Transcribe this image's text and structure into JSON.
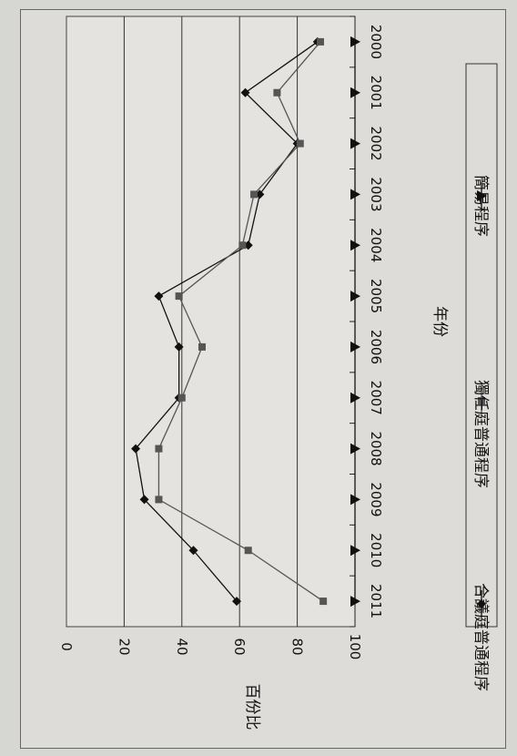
{
  "chart_data": {
    "type": "line",
    "xlabel": "年份",
    "ylabel": "百份比",
    "x": [
      "2011",
      "2010",
      "2009",
      "2008",
      "2007",
      "2006",
      "2005",
      "2004",
      "2003",
      "2002",
      "2001",
      "2000"
    ],
    "ylim": [
      0,
      100
    ],
    "yticks": [
      0,
      20,
      40,
      60,
      80,
      100
    ],
    "grid": true,
    "legend_position": "bottom",
    "orientation": "rotated-90-clockwise",
    "series": [
      {
        "name": "合議庭普通程序",
        "marker": "diamond",
        "color": "#111111",
        "values": [
          59,
          44,
          27,
          24,
          39,
          39,
          32,
          63,
          67,
          80,
          62,
          87
        ]
      },
      {
        "name": "獨任庭普通程序",
        "marker": "square",
        "color": "#555555",
        "values": [
          89,
          63,
          32,
          32,
          40,
          47,
          39,
          61,
          65,
          81,
          73,
          88
        ]
      },
      {
        "name": "簡易程序",
        "marker": "triangle",
        "color": "#111111",
        "values": [
          100,
          100,
          100,
          100,
          100,
          100,
          100,
          100,
          100,
          100,
          100,
          100
        ]
      }
    ]
  }
}
